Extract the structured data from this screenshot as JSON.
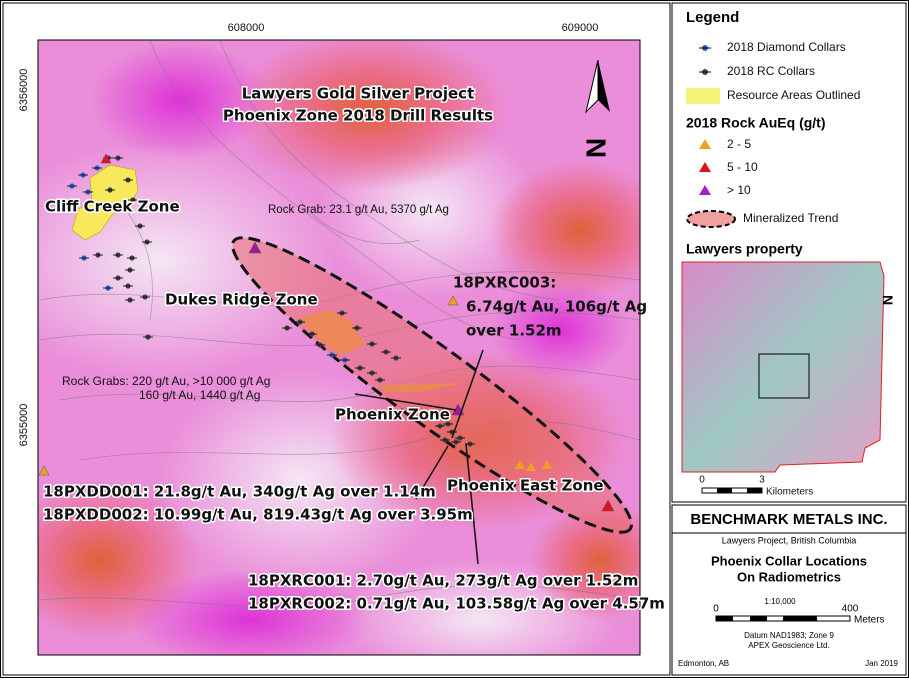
{
  "map": {
    "title": [
      "Lawyers Gold Silver Project",
      "Phoenix Zone 2018 Drill Results"
    ],
    "grid_labels": {
      "x": [
        608000,
        609000
      ],
      "y": [
        6356000,
        6355000
      ]
    },
    "north": "N",
    "zones": [
      "Cliff Creek Zone",
      "Dukes Ridge Zone",
      "Phoenix Zone",
      "Phoenix East Zone"
    ],
    "annotations": {
      "rock_grab": "Rock Grab: 23.1 g/t Au, 5370 g/t Ag",
      "rc003": [
        "18PXRC003:",
        "6.74g/t Au, 106g/t Ag",
        "over 1.52m"
      ],
      "rock_grabs": [
        "Rock Grabs: 220 g/t Au, >10 000 g/t Ag",
        "160 g/t Au, 1440 g/t Ag"
      ],
      "dd": [
        "18PXDD001:  21.8g/t Au, 340g/t Ag over 1.14m",
        "18PXDD002:  10.99g/t Au, 819.43g/t Ag over 3.95m"
      ],
      "rc": [
        "18PXRC001: 2.70g/t Au, 273g/t Ag over 1.52m",
        "18PXRC002: 0.71g/t Au, 103.58g/t Ag over 4.57m"
      ]
    }
  },
  "legend": {
    "title": "Legend",
    "items": [
      "2018 Diamond Collars",
      "2018 RC Collars",
      "Resource Areas Outlined"
    ],
    "rock_title": "2018 Rock AuEq (g/t)",
    "rock_items": [
      "2 - 5",
      "5 - 10",
      "> 10"
    ],
    "trend": "Mineralized Trend"
  },
  "inset": {
    "title": "Lawyers property",
    "north": "N",
    "scale_labels": [
      0,
      3
    ],
    "unit": "Kilometers"
  },
  "title_block": {
    "company": "BENCHMARK METALS INC.",
    "location": "Lawyers Project, British Columbia",
    "title": [
      "Phoenix Collar Locations",
      "On Radiometrics"
    ],
    "scale": "1:10,000",
    "scale_labels": [
      0,
      400
    ],
    "unit": "Meters",
    "datum": "Datum NAD1983; Zone 9",
    "author": "APEX Geoscience Ltd.",
    "place": "Edmonton, AB",
    "date": "Jan 2019"
  }
}
